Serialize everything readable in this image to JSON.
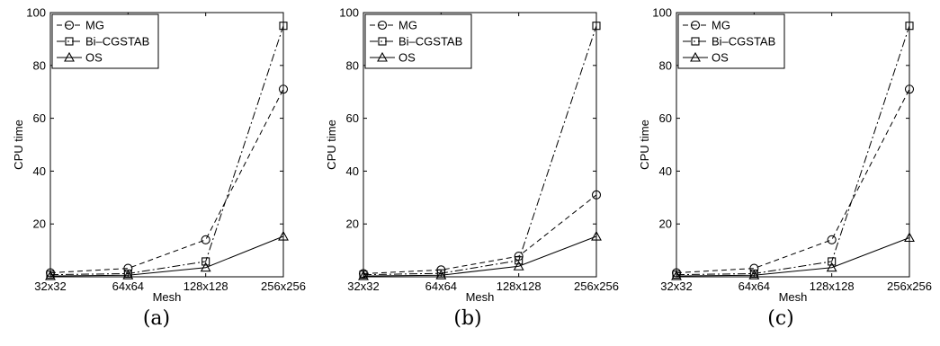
{
  "chart_data": [
    {
      "type": "line",
      "caption": "(a)",
      "xlabel": "Mesh",
      "ylabel": "CPU time",
      "categories": [
        "32x32",
        "64x64",
        "128x128",
        "256x256"
      ],
      "ylim": [
        0,
        100
      ],
      "yticks": [
        20,
        40,
        60,
        80,
        100
      ],
      "grid": false,
      "legend_position": "top-left",
      "series": [
        {
          "name": "MG",
          "values": [
            1.5,
            3.2,
            14,
            71
          ],
          "dash": "dashed",
          "marker": "circle"
        },
        {
          "name": "Bi–CGSTAB",
          "values": [
            0.8,
            1.2,
            5.8,
            95
          ],
          "dash": "dashdot",
          "marker": "square"
        },
        {
          "name": "OS",
          "values": [
            0.3,
            0.6,
            3.5,
            15.3
          ],
          "dash": "solid",
          "marker": "triangle"
        }
      ]
    },
    {
      "type": "line",
      "caption": "(b)",
      "xlabel": "Mesh",
      "ylabel": "CPU time",
      "categories": [
        "32x32",
        "64x64",
        "128x128",
        "256x256"
      ],
      "ylim": [
        0,
        100
      ],
      "yticks": [
        20,
        40,
        60,
        80,
        100
      ],
      "grid": false,
      "legend_position": "top-left",
      "series": [
        {
          "name": "MG",
          "values": [
            1.2,
            2.6,
            7.8,
            31
          ],
          "dash": "dashed",
          "marker": "circle"
        },
        {
          "name": "Bi–CGSTAB",
          "values": [
            0.8,
            1.3,
            6.2,
            95
          ],
          "dash": "dashdot",
          "marker": "square"
        },
        {
          "name": "OS",
          "values": [
            0.3,
            0.6,
            4.0,
            15.3
          ],
          "dash": "solid",
          "marker": "triangle"
        }
      ]
    },
    {
      "type": "line",
      "caption": "(c)",
      "xlabel": "Mesh",
      "ylabel": "CPU time",
      "categories": [
        "32x32",
        "64x64",
        "128x128",
        "256x256"
      ],
      "ylim": [
        0,
        100
      ],
      "yticks": [
        20,
        40,
        60,
        80,
        100
      ],
      "grid": false,
      "legend_position": "top-left",
      "series": [
        {
          "name": "MG",
          "values": [
            1.5,
            3.2,
            14,
            71
          ],
          "dash": "dashed",
          "marker": "circle"
        },
        {
          "name": "Bi–CGSTAB",
          "values": [
            0.8,
            1.2,
            5.8,
            95
          ],
          "dash": "dashdot",
          "marker": "square"
        },
        {
          "name": "OS",
          "values": [
            0.3,
            0.6,
            3.5,
            14.8
          ],
          "dash": "solid",
          "marker": "triangle"
        }
      ]
    }
  ]
}
